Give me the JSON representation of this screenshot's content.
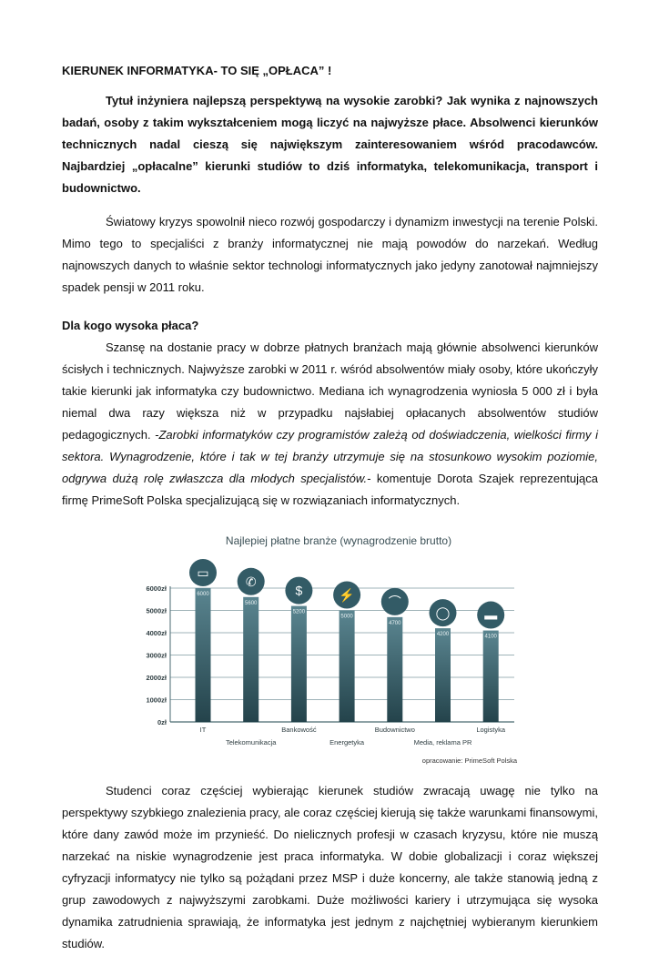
{
  "title": "KIERUNEK INFORMATYKA- TO SIĘ „OPŁACA” !",
  "lead": "Tytuł inżyniera najlepszą perspektywą na wysokie zarobki? Jak wynika z najnowszych badań, osoby z takim wykształceniem mogą liczyć na najwyższe płace. Absolwenci kierunków technicznych nadal cieszą się największym zainteresowaniem wśród pracodawców. Najbardziej „opłacalne” kierunki studiów to dziś informatyka, telekomunikacja, transport i budownictwo.",
  "paragraph1": "Światowy kryzys spowolnił nieco rozwój gospodarczy i dynamizm inwestycji na terenie Polski. Mimo tego to specjaliści z branży informatycznej nie mają powodów do narzekań. Według najnowszych danych to właśnie sektor technologi informatycznych jako jedyny zanotował najmniejszy spadek pensji w 2011 roku.",
  "subheading": "Dla kogo wysoka płaca?",
  "paragraph2": {
    "text": "Szansę na dostanie pracy w dobrze płatnych branżach mają głównie absolwenci kierunków ścisłych i technicznych. Najwyższe zarobki w 2011 r. wśród absolwentów miały osoby, które ukończyły takie kierunki jak informatyka czy budownictwo. Mediana ich wynagrodzenia wyniosła 5 000 zł i była niemal dwa razy większa niż w przypadku najsłabiej opłacanych absolwentów studiów pedagogicznych. ",
    "quote": "-Zarobki informatyków czy programistów zależą od doświadczenia, wielkości firmy i sektora. Wynagrodzenie, które i tak w tej branży utrzymuje się na stosunkowo wysokim poziomie, odgrywa dużą rolę zwłaszcza dla młodych specjalistów.",
    "attribution": "- komentuje Dorota Szajek reprezentująca firmę PrimeSoft Polska specjalizującą się w rozwiązaniach informatycznych."
  },
  "paragraph3": "Studenci coraz częściej wybierając kierunek studiów zwracają uwagę nie tylko na perspektywy szybkiego znalezienia pracy, ale coraz częściej kierują się także warunkami finansowymi, które dany zawód może im przynieść. Do nielicznych profesji w czasach kryzysu, które nie muszą narzekać na niskie wynagrodzenie jest praca informatyka. W dobie globalizacji i coraz większej cyfryzacji informatycy nie tylko są pożądani przez MSP i duże koncerny, ale także stanowią jedną z grup zawodowych z najwyższymi zarobkami. Duże możliwości kariery i utrzymująca się wysoka dynamika zatrudnienia sprawiają, że informatyka jest jednym z najchętniej wybieranym kierunkiem studiów.",
  "chart_data": {
    "type": "bar",
    "title": "Najlepiej płatne branże (wynagrodzenie brutto)",
    "categories": [
      "IT",
      "Telekomunikacja",
      "Bankowość",
      "Energetyka",
      "Budownictwo",
      "Media, reklama PR",
      "Logistyka"
    ],
    "values": [
      6000,
      5600,
      5200,
      5000,
      4700,
      4200,
      4100
    ],
    "data_labels": [
      "6000",
      "5600",
      "5200",
      "5000",
      "4700",
      "4200",
      "4100"
    ],
    "icons": [
      "laptop-icon",
      "phone-icon",
      "money-icon",
      "lightning-icon",
      "bridge-icon",
      "lightbulb-icon",
      "truck-icon"
    ],
    "y_ticks": [
      "0zł",
      "1000zł",
      "2000zł",
      "3000zł",
      "4000zł",
      "5000zł",
      "6000zł"
    ],
    "ylim": [
      0,
      6000
    ],
    "grid": true,
    "source": "opracowanie: PrimeSoft Polska",
    "colors": {
      "bar_dark": "#24434b",
      "bar_light": "#5a8590",
      "icon_circle": "#335b66",
      "grid": "#9fb3b8"
    }
  }
}
